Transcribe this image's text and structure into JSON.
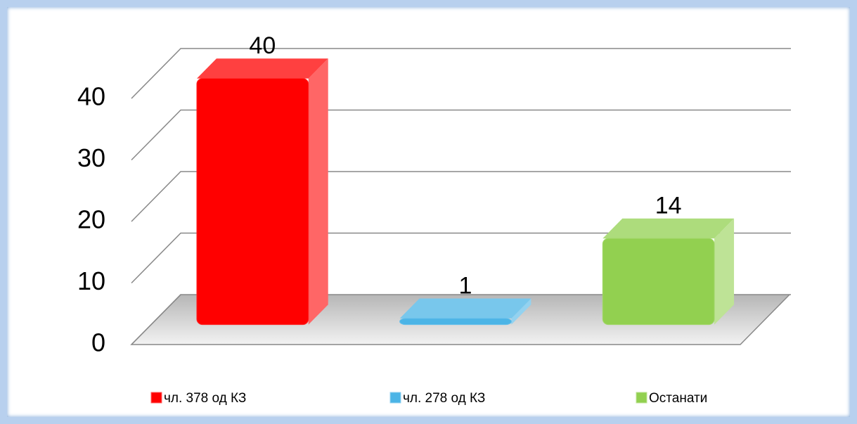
{
  "chart_data": {
    "type": "bar3d",
    "categories": [
      "чл. 378 од КЗ",
      "чл. 278 од КЗ",
      "Останати"
    ],
    "values": [
      40,
      1,
      14
    ],
    "colors": [
      "#ff0000",
      "#4bb4e6",
      "#92d050"
    ],
    "ylim": [
      0,
      40
    ],
    "yticks": [
      0,
      10,
      20,
      30,
      40
    ],
    "grid": true,
    "legend": "bottom"
  }
}
